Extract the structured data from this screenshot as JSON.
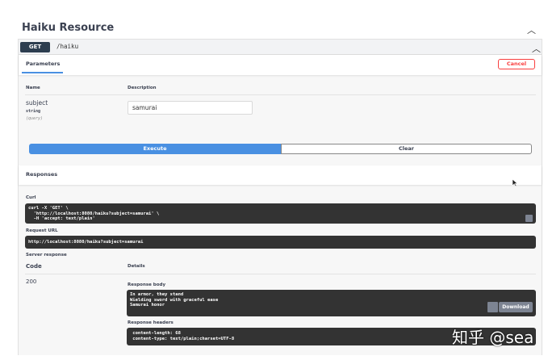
{
  "section": {
    "title": "Haiku Resource"
  },
  "operation": {
    "method": "GET",
    "path": "/haiku",
    "method_color": "#2d3e50"
  },
  "parameters": {
    "tab_label": "Parameters",
    "cancel_label": "Cancel",
    "col_name": "Name",
    "col_description": "Description",
    "items": [
      {
        "name": "subject",
        "type": "string",
        "in": "(query)",
        "value": "samurai"
      }
    ]
  },
  "actions": {
    "execute_label": "Execute",
    "clear_label": "Clear",
    "execute_color": "#4990e2"
  },
  "responses": {
    "title": "Responses",
    "curl_label": "Curl",
    "curl": "curl -X 'GET' \\\n  'http://localhost:8080/haiku?subject=samurai' \\\n  -H 'accept: text/plain'",
    "request_url_label": "Request URL",
    "request_url": "http://localhost:8080/haiku?subject=samurai",
    "server_response_label": "Server response",
    "col_code": "Code",
    "col_details": "Details",
    "code": "200",
    "body_label": "Response body",
    "body": "In armor, they stand\nWielding sword with graceful ease\nSamurai honor",
    "download_label": "Download",
    "headers_label": "Response headers",
    "headers": " content-length: 68\n content-type: text/plain;charset=UTF-8"
  },
  "watermark": "知乎 @sea"
}
